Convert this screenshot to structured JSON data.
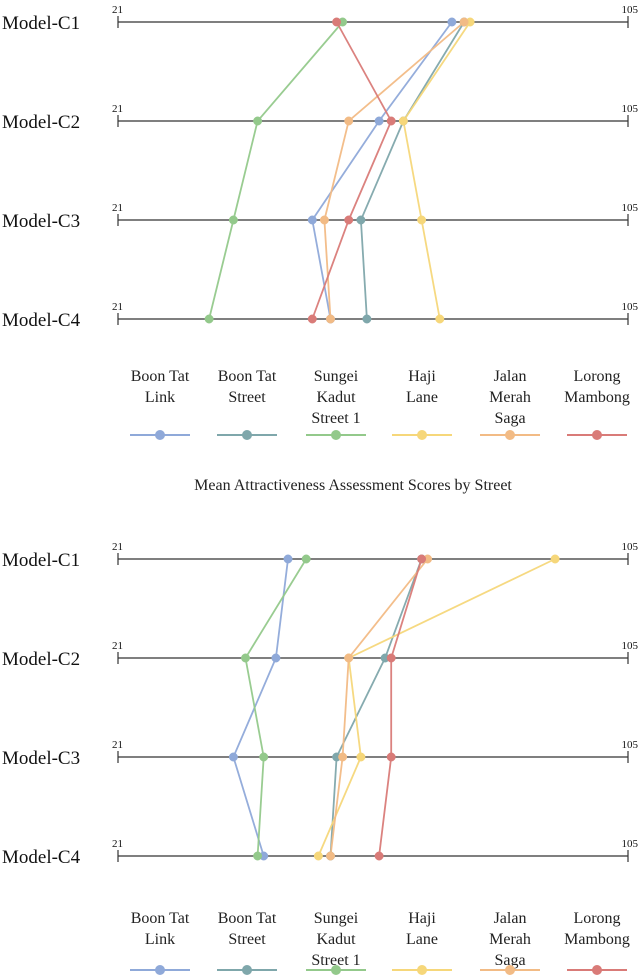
{
  "caption": "Mean Attractiveness Assessment Scores by Street",
  "colors": {
    "Boon Tat Link": "#8fa9d9",
    "Boon Tat Street": "#7fa7ab",
    "Sungei Kadut Street 1": "#93c98b",
    "Haji Lane": "#f6d77a",
    "Jalan Merah Saga": "#f2bb85",
    "Lorong Mambong": "#d97b78"
  },
  "chart_data": [
    {
      "type": "line",
      "title": "",
      "axis_min_label": "21",
      "axis_max_label": "105",
      "xlim": [
        21,
        105
      ],
      "categories": [
        "Model-C1",
        "Model-C2",
        "Model-C3",
        "Model-C4"
      ],
      "legend": {
        "placement": "bottom",
        "entries": [
          {
            "lines": [
              "Boon Tat",
              "Link"
            ]
          },
          {
            "lines": [
              "Boon Tat",
              "Street"
            ]
          },
          {
            "lines": [
              "Sungei",
              "Kadut",
              "Street 1"
            ]
          },
          {
            "lines": [
              "Haji",
              "Lane"
            ]
          },
          {
            "lines": [
              "Jalan",
              "Merah",
              "Saga"
            ]
          },
          {
            "lines": [
              "Lorong",
              "Mambong"
            ]
          }
        ]
      },
      "series": [
        {
          "name": "Boon Tat Link",
          "values": [
            76,
            64,
            53,
            56
          ]
        },
        {
          "name": "Boon Tat Street",
          "values": [
            78,
            68,
            61,
            62
          ]
        },
        {
          "name": "Sungei Kadut Street 1",
          "values": [
            58,
            44,
            40,
            36
          ]
        },
        {
          "name": "Haji Lane",
          "values": [
            79,
            68,
            71,
            74
          ]
        },
        {
          "name": "Jalan Merah Saga",
          "values": [
            78,
            59,
            55,
            56
          ]
        },
        {
          "name": "Lorong Mambong",
          "values": [
            57,
            66,
            59,
            53
          ]
        }
      ]
    },
    {
      "type": "line",
      "title": "",
      "axis_min_label": "21",
      "axis_max_label": "105",
      "xlim": [
        21,
        105
      ],
      "categories": [
        "Model-C1",
        "Model-C2",
        "Model-C3",
        "Model-C4"
      ],
      "legend": {
        "placement": "bottom",
        "entries": [
          {
            "lines": [
              "Boon Tat",
              "Link"
            ]
          },
          {
            "lines": [
              "Boon Tat",
              "Street"
            ]
          },
          {
            "lines": [
              "Sungei",
              "Kadut",
              "Street 1"
            ]
          },
          {
            "lines": [
              "Haji",
              "Lane"
            ]
          },
          {
            "lines": [
              "Jalan",
              "Merah",
              "Saga"
            ]
          },
          {
            "lines": [
              "Lorong",
              "Mambong"
            ]
          }
        ]
      },
      "series": [
        {
          "name": "Boon Tat Link",
          "values": [
            49,
            47,
            40,
            45
          ]
        },
        {
          "name": "Boon Tat Street",
          "values": [
            71,
            65,
            57,
            56
          ]
        },
        {
          "name": "Sungei Kadut Street 1",
          "values": [
            52,
            42,
            45,
            44
          ]
        },
        {
          "name": "Haji Lane",
          "values": [
            93,
            59,
            61,
            54
          ]
        },
        {
          "name": "Jalan Merah Saga",
          "values": [
            72,
            59,
            58,
            56
          ]
        },
        {
          "name": "Lorong Mambong",
          "values": [
            71,
            66,
            66,
            64
          ]
        }
      ]
    }
  ]
}
